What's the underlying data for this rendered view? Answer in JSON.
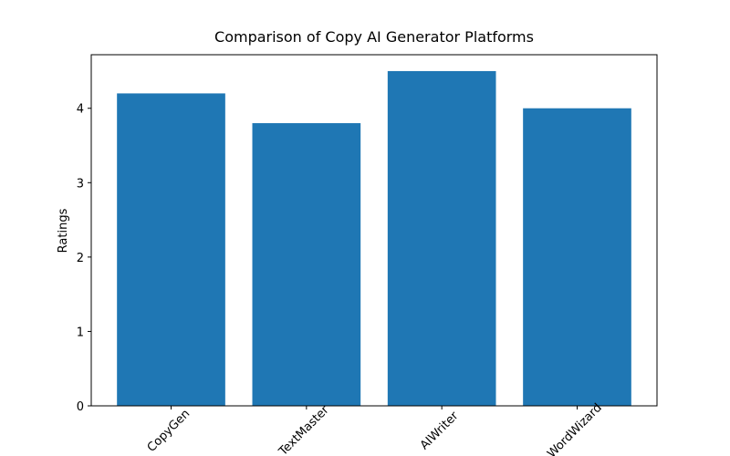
{
  "chart_data": {
    "type": "bar",
    "title": "Comparison of Copy AI Generator Platforms",
    "y_label": "Ratings",
    "categories": [
      "CopyGen",
      "TextMaster",
      "AIWriter",
      "WordWizard"
    ],
    "values": [
      4.2,
      3.8,
      4.5,
      4.0
    ],
    "color": "#1f77b4",
    "ylim": [
      0,
      4.72
    ],
    "yticks": [
      0,
      1,
      2,
      3,
      4
    ],
    "grid": false
  }
}
